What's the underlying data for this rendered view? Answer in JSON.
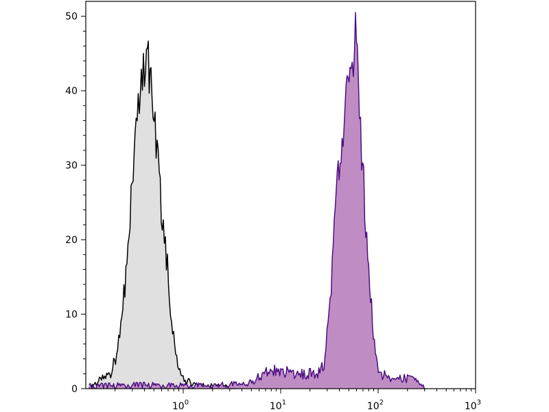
{
  "chart_data": {
    "type": "area",
    "title": "",
    "xlabel": "",
    "ylabel": "",
    "xscale": "log",
    "xlim": [
      0.1,
      1000
    ],
    "ylim": [
      0,
      52
    ],
    "grid": false,
    "legend": "none",
    "x_tick_labels": [
      {
        "value": 1,
        "base": "10",
        "exp": "0"
      },
      {
        "value": 10,
        "base": "10",
        "exp": "1"
      },
      {
        "value": 100,
        "base": "10",
        "exp": "2"
      },
      {
        "value": 1000,
        "base": "10",
        "exp": "3"
      }
    ],
    "y_ticks": [
      0,
      10,
      20,
      30,
      40,
      50
    ],
    "series": [
      {
        "fill": "#e0e0e0",
        "line": "#000000",
        "x": [
          0.108,
          0.138,
          0.176,
          0.207,
          0.229,
          0.252,
          0.278,
          0.306,
          0.337,
          0.372,
          0.41,
          0.438,
          0.467,
          0.514,
          0.567,
          0.625,
          0.689,
          0.759,
          0.837,
          0.922,
          1.05,
          1.45,
          2.36,
          3.84
        ],
        "y": [
          0.3,
          1,
          2,
          4,
          8,
          14,
          22,
          30,
          36,
          40,
          43,
          44,
          40,
          36,
          28,
          22,
          16,
          9,
          5,
          2,
          1,
          0.5,
          0.3,
          0
        ]
      },
      {
        "fill": "#c08cc4",
        "line": "#4b1080",
        "x": [
          0.108,
          0.337,
          0.893,
          2.78,
          3.84,
          5.31,
          6.78,
          8.65,
          11.9,
          16.5,
          22.9,
          27.8,
          30.6,
          33.8,
          37.2,
          41.7,
          45.9,
          51.4,
          55.7,
          58.6,
          62.5,
          67.8,
          74.7,
          83.7,
          93.7,
          103,
          148,
          221,
          282,
          306
        ],
        "y": [
          0.3,
          0.5,
          0.4,
          0.5,
          0.7,
          1,
          2,
          2.5,
          2.2,
          2,
          2,
          3,
          8,
          16,
          25,
          32,
          38,
          41,
          44,
          50,
          40,
          32,
          22,
          12,
          5,
          2,
          1.5,
          1.2,
          0.5,
          0
        ]
      }
    ]
  }
}
